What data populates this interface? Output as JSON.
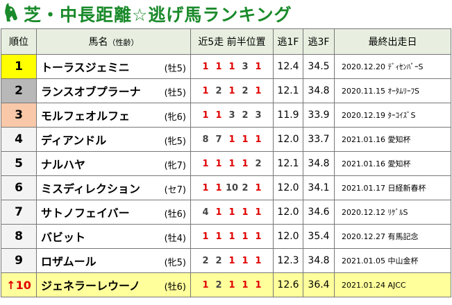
{
  "title": "芝・中長距離☆逃げ馬ランキング",
  "headers": {
    "rank": "順位",
    "horse": "馬名",
    "horse_sub": "（性齢）",
    "positions": "近5走 前半位置",
    "f1": "逃1F",
    "f3": "逃3F",
    "last": "最終出走日"
  },
  "colors": {
    "title": "#1a8a2a",
    "lead_position": "#e00000",
    "gold": "#ffff00",
    "silver": "#b8b8b8",
    "bronze": "#f8c8a8",
    "highlight": "#ffff9c"
  },
  "icons": {
    "logo": "horse-head-icon"
  },
  "rows": [
    {
      "rank": "1",
      "name": "トーラスジェミニ",
      "sexage": "(牡5)",
      "pos": [
        "1",
        "1",
        "1",
        "3",
        "1"
      ],
      "f1": "12.4",
      "f3": "34.5",
      "last": "2020.12.20 ﾃﾞｨｾﾝﾊﾞｰS"
    },
    {
      "rank": "2",
      "name": "ランスオブプラーナ",
      "sexage": "(牡5)",
      "pos": [
        "1",
        "2",
        "1",
        "2",
        "1"
      ],
      "f1": "12.1",
      "f3": "34.8",
      "last": "2020.11.15 ｵｰﾀﾑﾘｰﾌS"
    },
    {
      "rank": "3",
      "name": "モルフェオルフェ",
      "sexage": "(牝6)",
      "pos": [
        "1",
        "1",
        "3",
        "2",
        "3"
      ],
      "f1": "11.9",
      "f3": "33.9",
      "last": "2020.12.19 ﾀｰｺｲｽﾞS"
    },
    {
      "rank": "4",
      "name": "ディアンドル",
      "sexage": "(牝5)",
      "pos": [
        "8",
        "7",
        "1",
        "1",
        "1"
      ],
      "f1": "12.0",
      "f3": "33.7",
      "last": "2021.01.16 愛知杯"
    },
    {
      "rank": "5",
      "name": "ナルハヤ",
      "sexage": "(牝7)",
      "pos": [
        "1",
        "1",
        "1",
        "1",
        "2"
      ],
      "f1": "12.1",
      "f3": "34.8",
      "last": "2021.01.16 愛知杯"
    },
    {
      "rank": "6",
      "name": "ミスディレクション",
      "sexage": "(セ7)",
      "pos": [
        "1",
        "1",
        "10",
        "2",
        "1"
      ],
      "f1": "12.0",
      "f3": "34.1",
      "last": "2021.01.17 日経新春杯"
    },
    {
      "rank": "7",
      "name": "サトノフェイバー",
      "sexage": "(牡6)",
      "pos": [
        "4",
        "1",
        "1",
        "1",
        "1"
      ],
      "f1": "12.0",
      "f3": "34.6",
      "last": "2020.12.12 ﾘｹﾞﾙS"
    },
    {
      "rank": "8",
      "name": "バビット",
      "sexage": "(牡4)",
      "pos": [
        "1",
        "1",
        "1",
        "1",
        "1"
      ],
      "f1": "12.0",
      "f3": "35.4",
      "last": "2020.12.27 有馬記念"
    },
    {
      "rank": "9",
      "name": "ロザムール",
      "sexage": "(牝5)",
      "pos": [
        "2",
        "2",
        "1",
        "1",
        "1"
      ],
      "f1": "12.3",
      "f3": "34.8",
      "last": "2021.01.05 中山金杯"
    },
    {
      "rank": "↑10",
      "name": "ジェネラーレウーノ",
      "sexage": "(牡6)",
      "pos": [
        "1",
        "2",
        "1",
        "1",
        "1"
      ],
      "f1": "12.6",
      "f3": "36.4",
      "last": "2021.01.24 AJCC"
    }
  ]
}
